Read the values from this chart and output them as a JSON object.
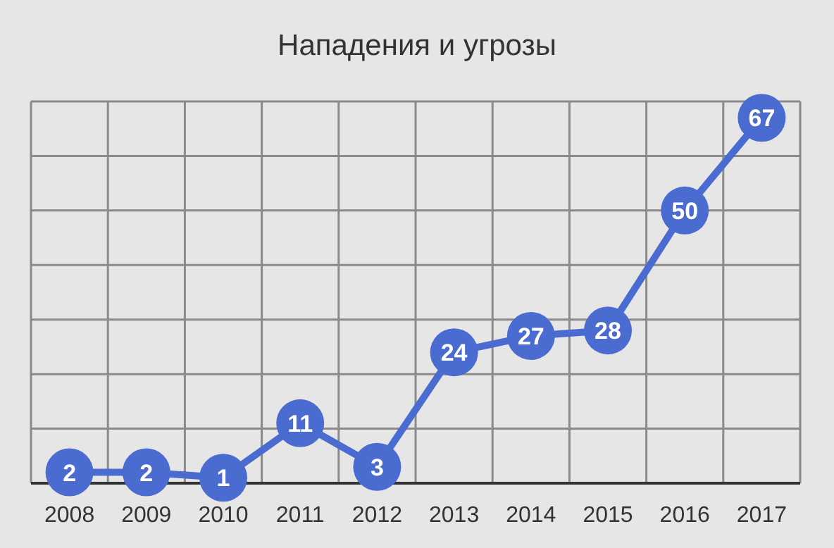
{
  "chart_data": {
    "type": "line",
    "title": "Нападения и угрозы",
    "categories": [
      "2008",
      "2009",
      "2010",
      "2011",
      "2012",
      "2013",
      "2014",
      "2015",
      "2016",
      "2017"
    ],
    "series": [
      {
        "color": "#4a6bd0",
        "values": [
          2,
          2,
          1,
          11,
          3,
          24,
          27,
          28,
          50,
          67
        ]
      }
    ],
    "ylim": [
      0,
      70
    ],
    "yticks": [
      {
        "value": 0,
        "label": null
      },
      {
        "value": 10,
        "label": null
      },
      {
        "value": 20,
        "label": null
      },
      {
        "value": 30,
        "label": null
      },
      {
        "value": 40,
        "label": null
      },
      {
        "value": 50,
        "label": null
      },
      {
        "value": 60,
        "label": null
      },
      {
        "value": 70,
        "label": null
      }
    ],
    "tick_labels": "x",
    "grid": true,
    "marker": "circle",
    "data_labels": true,
    "legend": false
  }
}
